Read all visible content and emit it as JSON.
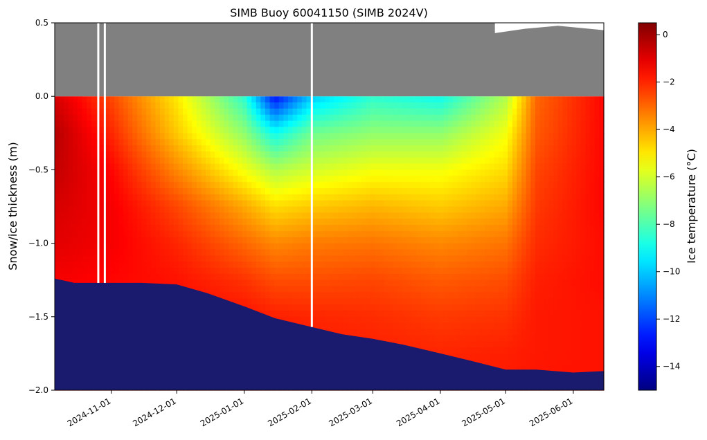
{
  "chart_data": {
    "type": "heatmap",
    "title": "SIMB Buoy 60041150 (SIMB 2024V)",
    "xlabel": "",
    "ylabel": "Snow/ice thickness (m)",
    "colorbar_label": "Ice temperature (°C)",
    "colormap": "jet",
    "x_axis_type": "date",
    "xlim": [
      "2024-10-06",
      "2025-06-15"
    ],
    "ylim": [
      -2.0,
      0.5
    ],
    "clim": [
      -15,
      0.5
    ],
    "x_ticks": [
      "2024-11-01",
      "2024-12-01",
      "2025-01-01",
      "2025-02-01",
      "2025-03-01",
      "2025-04-01",
      "2025-05-01",
      "2025-06-01"
    ],
    "y_ticks": [
      0.5,
      0.0,
      -0.5,
      -1.0,
      -1.5,
      -2.0
    ],
    "y_tick_labels": [
      "0.5",
      "0.0",
      "−0.5",
      "−1.0",
      "−1.5",
      "−2.0"
    ],
    "colorbar_ticks": [
      0,
      -2,
      -4,
      -6,
      -8,
      -10,
      -12,
      -14
    ],
    "colorbar_tick_labels": [
      "0",
      "−2",
      "−4",
      "−6",
      "−8",
      "−10",
      "−12",
      "−14"
    ],
    "snow_layer": {
      "color": "#808080",
      "range_m": [
        0.0,
        0.5
      ]
    },
    "seawater_color": "#1a1a6e",
    "ice_bottom": {
      "dates": [
        "2024-10-06",
        "2024-10-15",
        "2024-11-01",
        "2024-11-15",
        "2024-12-01",
        "2024-12-15",
        "2025-01-01",
        "2025-01-15",
        "2025-02-01",
        "2025-02-15",
        "2025-03-01",
        "2025-03-15",
        "2025-04-01",
        "2025-04-15",
        "2025-05-01",
        "2025-05-15",
        "2025-06-01",
        "2025-06-15"
      ],
      "depth_m": [
        -1.24,
        -1.27,
        -1.27,
        -1.27,
        -1.28,
        -1.34,
        -1.43,
        -1.51,
        -1.57,
        -1.62,
        -1.65,
        -1.69,
        -1.75,
        -1.8,
        -1.86,
        -1.86,
        -1.88,
        -1.87
      ]
    },
    "snow_top_gap": {
      "dates": [
        "2025-04-26",
        "2025-05-10",
        "2025-05-25",
        "2025-06-15"
      ],
      "height_m": [
        0.43,
        0.46,
        0.48,
        0.45
      ]
    },
    "data_gaps": [
      "2024-10-26",
      "2024-10-29",
      "2025-02-01"
    ],
    "temperature_profile": {
      "depths_m": [
        0.0,
        -0.25,
        -0.5,
        -0.75,
        -1.0,
        -1.25,
        -1.5,
        -1.75,
        -2.0
      ],
      "dates": [
        "2024-10-06",
        "2024-11-01",
        "2024-12-01",
        "2025-01-01",
        "2025-01-15",
        "2025-02-01",
        "2025-03-01",
        "2025-04-01",
        "2025-05-01",
        "2025-05-15",
        "2025-06-15"
      ],
      "temperature_c": [
        [
          -0.8,
          -2.5,
          -5.0,
          -8.5,
          -13.0,
          -10.0,
          -8.5,
          -9.0,
          -6.5,
          -3.0,
          -1.5
        ],
        [
          -0.3,
          -2.0,
          -4.5,
          -7.0,
          -9.0,
          -7.5,
          -7.0,
          -7.0,
          -5.5,
          -2.8,
          -1.5
        ],
        [
          -0.5,
          -1.5,
          -3.5,
          -5.5,
          -6.5,
          -6.0,
          -5.5,
          -5.5,
          -4.8,
          -2.5,
          -1.5
        ],
        [
          -0.8,
          -1.3,
          -2.5,
          -4.0,
          -4.8,
          -4.5,
          -4.2,
          -4.5,
          -4.0,
          -2.3,
          -1.5
        ],
        [
          -1.0,
          -1.3,
          -2.0,
          -3.0,
          -3.5,
          -3.3,
          -3.2,
          -3.5,
          -3.2,
          -2.1,
          -1.6
        ],
        [
          -1.3,
          -1.5,
          -1.7,
          -2.2,
          -2.6,
          -2.6,
          -2.5,
          -2.8,
          -2.6,
          -1.9,
          -1.6
        ],
        [
          -1.5,
          -1.6,
          -1.6,
          -1.7,
          -1.9,
          -2.0,
          -2.1,
          -2.3,
          -2.2,
          -1.8,
          -1.7
        ],
        [
          -1.6,
          -1.7,
          -1.7,
          -1.7,
          -1.8,
          -1.8,
          -1.9,
          -2.0,
          -1.9,
          -1.8,
          -1.7
        ],
        [
          -1.7,
          -1.7,
          -1.7,
          -1.7,
          -1.7,
          -1.7,
          -1.8,
          -1.8,
          -1.8,
          -1.7,
          -1.7
        ]
      ]
    }
  }
}
